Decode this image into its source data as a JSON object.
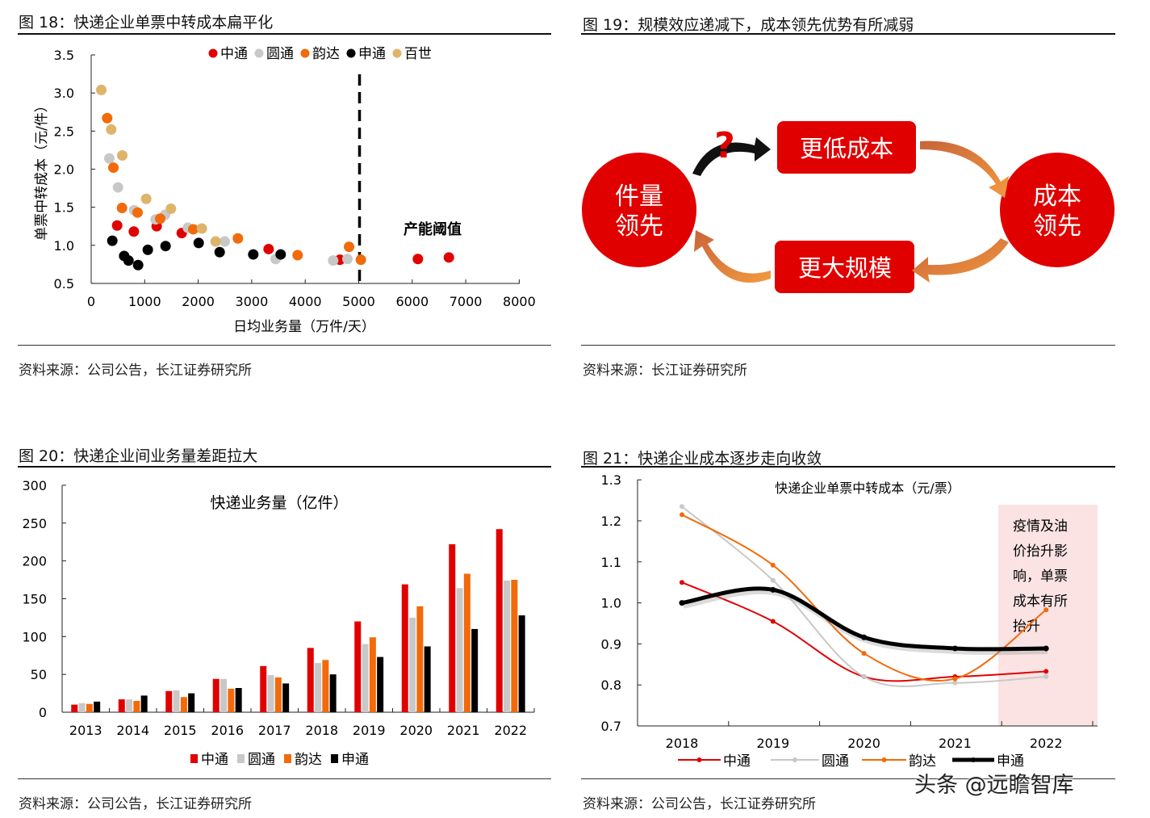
{
  "panels": {
    "fig18": {
      "title": "图 18：快递企业单票中转成本扁平化",
      "source": "资料来源：公司公告，长江证券研究所"
    },
    "fig19": {
      "title": "图 19：规模效应递减下，成本领先优势有所减弱",
      "source": "资料来源：长江证券研究所"
    },
    "fig20": {
      "title": "图 20：快递企业间业务量差距拉大",
      "source": "资料来源：公司公告，长江证券研究所"
    },
    "fig21": {
      "title": "图 21：快递企业成本逐步走向收敛",
      "source": "资料来源：公司公告，长江证券研究所"
    }
  },
  "diagram": {
    "left_circle": [
      "件量",
      "领先"
    ],
    "right_circle": [
      "成本",
      "领先"
    ],
    "top_box": "更低成本",
    "bottom_box": "更大规模",
    "question_mark": "?",
    "color_red": "#E00000",
    "color_arrow": "#E8792A"
  },
  "watermark": "头条 @远瞻智库",
  "chart_data": [
    {
      "type": "scatter",
      "xlabel": "日均业务量（万件/天）",
      "ylabel": "单票中转成本（元/件）",
      "xlim": [
        0,
        8000
      ],
      "ylim": [
        0.5,
        3.5
      ],
      "xticks": [
        "0",
        "1000",
        "2000",
        "3000",
        "4000",
        "5000",
        "6000",
        "7000",
        "8000"
      ],
      "yticks": [
        "0.5",
        "1.0",
        "1.5",
        "2.0",
        "2.5",
        "3.0",
        "3.5"
      ],
      "legend_position": "top",
      "annotation": {
        "text": "产能阈值",
        "x": 5000
      },
      "series": [
        {
          "name": "中通",
          "color": "#E00000",
          "points": [
            [
              485,
              1.26
            ],
            [
              797,
              1.18
            ],
            [
              1224,
              1.25
            ],
            [
              1692,
              1.16
            ],
            [
              3316,
              0.95
            ],
            [
              4648,
              0.81
            ],
            [
              6106,
              0.82
            ],
            [
              6685,
              0.84
            ]
          ]
        },
        {
          "name": "圆通",
          "color": "#C8C8C8",
          "points": [
            [
              339,
              2.14
            ],
            [
              501,
              1.76
            ],
            [
              802,
              1.46
            ],
            [
              1204,
              1.34
            ],
            [
              1380,
              1.4
            ],
            [
              1807,
              1.23
            ],
            [
              2496,
              1.05
            ],
            [
              3447,
              0.82
            ],
            [
              4522,
              0.8
            ],
            [
              4789,
              0.82
            ]
          ]
        },
        {
          "name": "韵达",
          "color": "#F26A0A",
          "points": [
            [
              299,
              2.67
            ],
            [
              415,
              2.02
            ],
            [
              576,
              1.49
            ],
            [
              867,
              1.43
            ],
            [
              1290,
              1.35
            ],
            [
              1908,
              1.21
            ],
            [
              2742,
              1.09
            ],
            [
              3858,
              0.87
            ],
            [
              4819,
              0.98
            ],
            [
              5040,
              0.81
            ]
          ]
        },
        {
          "name": "申通",
          "color": "#000000",
          "points": [
            [
              395,
              1.06
            ],
            [
              616,
              0.86
            ],
            [
              697,
              0.8
            ],
            [
              877,
              0.74
            ],
            [
              1058,
              0.94
            ],
            [
              1390,
              0.99
            ],
            [
              2009,
              1.03
            ],
            [
              2401,
              0.91
            ],
            [
              3029,
              0.88
            ],
            [
              3541,
              0.88
            ]
          ]
        },
        {
          "name": "百世",
          "color": "#DDB46A",
          "points": [
            [
              189,
              3.04
            ],
            [
              374,
              2.52
            ],
            [
              581,
              2.18
            ],
            [
              1028,
              1.61
            ],
            [
              1490,
              1.48
            ],
            [
              2069,
              1.22
            ],
            [
              2326,
              1.05
            ]
          ]
        }
      ]
    },
    {
      "type": "bar",
      "title": "快递业务量（亿件）",
      "categories": [
        "2013",
        "2014",
        "2015",
        "2016",
        "2017",
        "2018",
        "2019",
        "2020",
        "2021",
        "2022"
      ],
      "ylim": [
        0,
        300
      ],
      "yticks": [
        "0",
        "50",
        "100",
        "150",
        "200",
        "250",
        "300"
      ],
      "legend_position": "bottom",
      "series": [
        {
          "name": "中通",
          "color": "#E00000",
          "values": [
            10,
            17,
            28,
            44,
            61,
            85,
            120,
            169,
            222,
            242
          ]
        },
        {
          "name": "圆通",
          "color": "#C8C8C8",
          "values": [
            12,
            17,
            29,
            44,
            49,
            65,
            90,
            125,
            164,
            174
          ]
        },
        {
          "name": "韵达",
          "color": "#F26A0A",
          "values": [
            11,
            15,
            20,
            31,
            46,
            69,
            99,
            140,
            183,
            175
          ]
        },
        {
          "name": "申通",
          "color": "#000000",
          "values": [
            14,
            22,
            25,
            32,
            38,
            50,
            73,
            87,
            110,
            128
          ]
        }
      ]
    },
    {
      "type": "line",
      "title": "快递企业单票中转成本（元/票）",
      "categories": [
        "2018",
        "2019",
        "2020",
        "2021",
        "2022"
      ],
      "ylim": [
        0.7,
        1.3
      ],
      "yticks": [
        "0.7",
        "0.8",
        "0.9",
        "1.0",
        "1.1",
        "1.2",
        "1.3"
      ],
      "legend_position": "bottom",
      "annotation": {
        "text": [
          "疫情及油",
          "价抬升影",
          "响，单票",
          "成本有所",
          "抬升"
        ],
        "shade_color": "#FBE3E3"
      },
      "series": [
        {
          "name": "中通",
          "color": "#E00000",
          "values": [
            1.05,
            0.955,
            0.82,
            0.82,
            0.833
          ]
        },
        {
          "name": "圆通",
          "color": "#C8C8C8",
          "values": [
            1.235,
            1.055,
            0.82,
            0.805,
            0.82
          ]
        },
        {
          "name": "韵达",
          "color": "#F26A0A",
          "values": [
            1.215,
            1.092,
            0.877,
            0.815,
            0.983
          ]
        },
        {
          "name": "申通",
          "color": "#000000",
          "values": [
            1.0,
            1.032,
            0.916,
            0.889,
            0.889
          ]
        }
      ]
    }
  ]
}
